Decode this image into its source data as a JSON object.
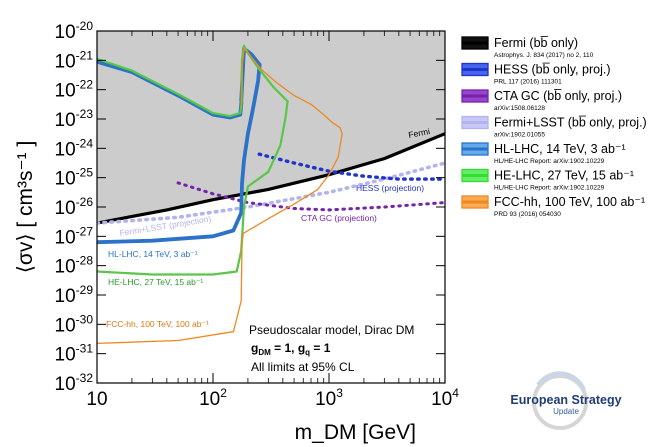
{
  "chart_data": {
    "type": "line",
    "xlabel": "m_DM  [GeV]",
    "ylabel": "⟨σv⟩ [ cm³s⁻¹ ]",
    "xscale": "log",
    "yscale": "log",
    "xlim": [
      10,
      10000
    ],
    "ylim": [
      1e-32,
      1e-20
    ],
    "x_ticks": [
      {
        "v": 10,
        "base": "10",
        "exp": ""
      },
      {
        "v": 100,
        "base": "10",
        "exp": "2"
      },
      {
        "v": 1000,
        "base": "10",
        "exp": "3"
      },
      {
        "v": 10000,
        "base": "10",
        "exp": "4"
      }
    ],
    "y_ticks": [
      {
        "v": -20,
        "base": "10",
        "exp": "-20"
      },
      {
        "v": -21,
        "base": "10",
        "exp": "-21"
      },
      {
        "v": -22,
        "base": "10",
        "exp": "-22"
      },
      {
        "v": -23,
        "base": "10",
        "exp": "-23"
      },
      {
        "v": -24,
        "base": "10",
        "exp": "-24"
      },
      {
        "v": -25,
        "base": "10",
        "exp": "-25"
      },
      {
        "v": -26,
        "base": "10",
        "exp": "-26"
      },
      {
        "v": -27,
        "base": "10",
        "exp": "-27"
      },
      {
        "v": -28,
        "base": "10",
        "exp": "-28"
      },
      {
        "v": -29,
        "base": "10",
        "exp": "-29"
      },
      {
        "v": -30,
        "base": "10",
        "exp": "-30"
      },
      {
        "v": -31,
        "base": "10",
        "exp": "-31"
      },
      {
        "v": -32,
        "base": "10",
        "exp": "-32"
      }
    ],
    "series": [
      {
        "name": "Fermi",
        "color": "#000000",
        "dash": "solid",
        "width": 3.2,
        "points": [
          [
            10,
            -26.55
          ],
          [
            40,
            -26.1
          ],
          [
            100,
            -25.75
          ],
          [
            300,
            -25.4
          ],
          [
            1000,
            -24.9
          ],
          [
            3000,
            -24.35
          ],
          [
            10000,
            -23.5
          ]
        ]
      },
      {
        "name": "Fermi+LSST",
        "color": "#b3b3ee",
        "dash": "dot",
        "width": 3.6,
        "points": [
          [
            10,
            -26.55
          ],
          [
            50,
            -26.35
          ],
          [
            200,
            -26.0
          ],
          [
            1000,
            -25.5
          ],
          [
            3000,
            -25.05
          ],
          [
            10000,
            -24.5
          ]
        ]
      },
      {
        "name": "HESS",
        "color": "#2233cc",
        "dash": "dot",
        "width": 3.4,
        "points": [
          [
            250,
            -24.2
          ],
          [
            500,
            -24.5
          ],
          [
            1000,
            -24.78
          ],
          [
            2000,
            -24.95
          ],
          [
            4000,
            -25.05
          ],
          [
            10000,
            -25.05
          ]
        ]
      },
      {
        "name": "CTA GC",
        "color": "#7722aa",
        "dash": "dot",
        "width": 3.0,
        "points": [
          [
            50,
            -25.18
          ],
          [
            100,
            -25.55
          ],
          [
            200,
            -25.85
          ],
          [
            500,
            -26.05
          ],
          [
            1000,
            -26.1
          ],
          [
            3000,
            -26.0
          ],
          [
            10000,
            -25.85
          ]
        ]
      },
      {
        "name": "HL-LHC",
        "color": "#2b72c8",
        "dash": "solid",
        "width": 3.8,
        "points": [
          [
            10,
            -27.2
          ],
          [
            30,
            -27.15
          ],
          [
            100,
            -27.0
          ],
          [
            150,
            -26.8
          ],
          [
            175,
            -26.2
          ],
          [
            178,
            -25.2
          ],
          [
            185,
            -24.4
          ],
          [
            200,
            -23.5
          ],
          [
            220,
            -22.7
          ],
          [
            245,
            -21.7
          ],
          [
            252,
            -21.15
          ],
          [
            215,
            -20.8
          ],
          [
            185,
            -20.6
          ],
          [
            175,
            -22.4
          ]
        ]
      },
      {
        "name": "HL-LHC_low",
        "color": "#2b72c8",
        "dash": "solid",
        "width": 3.8,
        "points": [
          [
            10,
            -21.05
          ],
          [
            20,
            -21.4
          ],
          [
            50,
            -22.2
          ],
          [
            100,
            -22.85
          ],
          [
            140,
            -22.95
          ],
          [
            172,
            -22.85
          ],
          [
            176,
            -22.4
          ]
        ]
      },
      {
        "name": "HE-LHC",
        "color": "#33dd33",
        "dash": "solid",
        "width": 2.2,
        "points": [
          [
            10,
            -28.2
          ],
          [
            30,
            -28.3
          ],
          [
            100,
            -28.3
          ],
          [
            160,
            -28.2
          ],
          [
            175,
            -27.5
          ],
          [
            185,
            -26.0
          ],
          [
            200,
            -25.3
          ],
          [
            300,
            -24.8
          ],
          [
            380,
            -23.9
          ],
          [
            420,
            -23.0
          ],
          [
            440,
            -22.4
          ],
          [
            330,
            -21.9
          ],
          [
            250,
            -21.3
          ],
          [
            200,
            -20.75
          ],
          [
            185,
            -20.5
          ],
          [
            178,
            -21.0
          ],
          [
            176,
            -22.5
          ]
        ]
      },
      {
        "name": "HE-LHC_low",
        "color": "#33dd33",
        "dash": "solid",
        "width": 2.2,
        "points": [
          [
            10,
            -20.95
          ],
          [
            20,
            -21.35
          ],
          [
            50,
            -22.15
          ],
          [
            100,
            -22.8
          ],
          [
            140,
            -22.9
          ],
          [
            172,
            -22.8
          ],
          [
            176,
            -22.5
          ]
        ]
      },
      {
        "name": "FCC-hh",
        "color": "#ee8822",
        "dash": "solid",
        "width": 1.3,
        "points": [
          [
            10,
            -30.65
          ],
          [
            50,
            -30.55
          ],
          [
            150,
            -30.25
          ],
          [
            175,
            -29.2
          ],
          [
            178,
            -27.3
          ],
          [
            182,
            -26.9
          ],
          [
            300,
            -26.4
          ],
          [
            500,
            -25.9
          ],
          [
            800,
            -25.4
          ],
          [
            1000,
            -24.9
          ],
          [
            1200,
            -24.3
          ],
          [
            1300,
            -23.5
          ],
          [
            1250,
            -23.3
          ],
          [
            1050,
            -23.1
          ],
          [
            900,
            -22.85
          ],
          [
            700,
            -22.5
          ],
          [
            500,
            -22.2
          ],
          [
            350,
            -21.75
          ],
          [
            260,
            -21.3
          ],
          [
            210,
            -20.85
          ],
          [
            185,
            -20.6
          ],
          [
            178,
            -21.3
          ],
          [
            176,
            -22.6
          ]
        ]
      }
    ],
    "annotations": [
      {
        "text": "Fermi",
        "color": "#000000"
      },
      {
        "text": "HESS (projection)",
        "color": "#2233cc"
      },
      {
        "text": "CTA GC (projection)",
        "color": "#7722aa"
      },
      {
        "text": "Fermi+LSST (projection)",
        "color": "#b3b3ee"
      },
      {
        "text": "HL-LHC, 14 TeV, 3 ab⁻¹",
        "color": "#2b72c8"
      },
      {
        "text": "HE-LHC, 27 TeV, 15 ab⁻¹",
        "color": "#2a9a2a"
      },
      {
        "text": "FCC-hh, 100 TeV, 100 ab⁻¹",
        "color": "#dd7711"
      }
    ],
    "notes": {
      "line1": "Pseudoscalar model, Dirac DM",
      "line2a": "g",
      "line2b": "DM",
      "line2c": " = 1, g",
      "line2d": "q",
      "line2e": " = 1",
      "line3": "All limits at 95% CL"
    },
    "legend": [
      {
        "label": "Fermi (bb̅ only)",
        "ref": "Astrophys. J. 834 (2017) no 2, 110",
        "color": "#000000",
        "fill": "#111111"
      },
      {
        "label": "HESS (bb̅ only, proj.)",
        "ref": "PRL 117 (2016) 111301",
        "color": "#2233cc",
        "fill": "#4466ee"
      },
      {
        "label": "CTA GC (bb̅ only, proj.)",
        "ref": "arXiv:1508.06128",
        "color": "#7722aa",
        "fill": "#9944cc"
      },
      {
        "label": "Fermi+LSST (bb̅ only, proj.)",
        "ref": "arXiv:1902.01055",
        "color": "#b3b3ee",
        "fill": "#c8c8f4"
      },
      {
        "label": "HL-LHC, 14 TeV, 3 ab⁻¹",
        "ref": "HL/HE-LHC Report: arXiv:1902.10229",
        "color": "#2b72c8",
        "fill": "#66aaee"
      },
      {
        "label": "HE-LHC, 27 TeV, 15 ab⁻¹",
        "ref": "HL/HE-LHC Report: arXiv:1902.10229",
        "color": "#33dd33",
        "fill": "#66ee66"
      },
      {
        "label": "FCC-hh, 100 TeV, 100 ab⁻¹",
        "ref": "PRD 93 (2016) 054030",
        "color": "#ee8822",
        "fill": "#ffaa55"
      }
    ],
    "logo": {
      "line1": "European Strategy",
      "line2": "Update"
    }
  }
}
